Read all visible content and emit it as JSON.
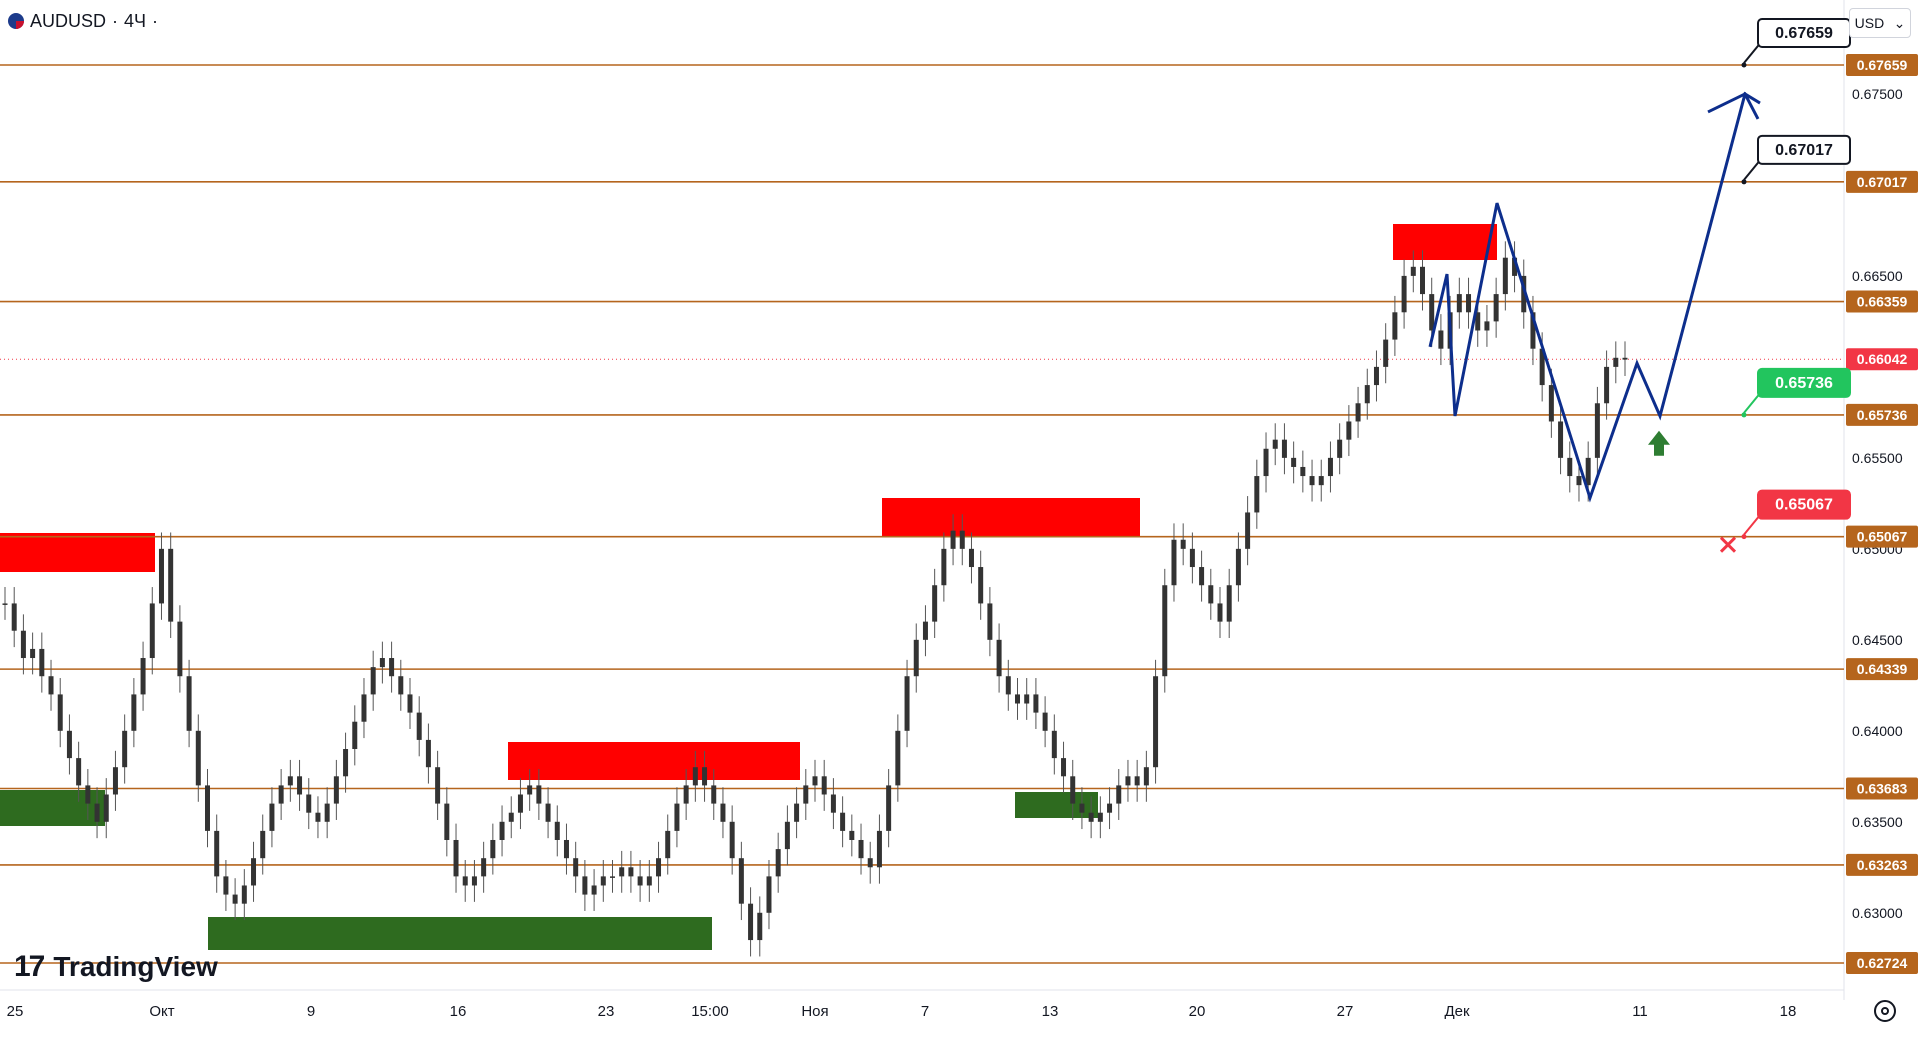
{
  "header": {
    "symbol": "AUDUSD",
    "sep": "·",
    "timeframe": "4Ч",
    "dot": "·"
  },
  "currency_button": {
    "label": "USD",
    "caret": "⌄"
  },
  "logo": {
    "mark": "17",
    "text": "TradingView"
  },
  "colors": {
    "level": "#b5651d",
    "bull": "#2e7d32",
    "bear": "#f23645",
    "zone_red": "#ff0000",
    "zone_green": "#2e6b1f",
    "path": "#0d2e8c",
    "fill_green": "#e8f5e9",
    "fill_red": "#fde4e4"
  },
  "chart_data": {
    "type": "line",
    "instrument": "AUDUSD",
    "timeframe": "4Ч",
    "y_range": [
      0.6272,
      0.6785
    ],
    "price_ticks": [
      "0.67500",
      "0.66500",
      "0.65500",
      "0.65000",
      "0.64500",
      "0.64000",
      "0.63500",
      "0.63000"
    ],
    "time_labels": [
      "25",
      "Окт",
      "9",
      "16",
      "23",
      "15:00",
      "Ноя",
      "7",
      "13",
      "20",
      "27",
      "Дек",
      "11",
      "18"
    ],
    "levels": [
      {
        "price": 0.67659,
        "label": "0.67659"
      },
      {
        "price": 0.67017,
        "label": "0.67017"
      },
      {
        "price": 0.66359,
        "label": "0.66359"
      },
      {
        "price": 0.65736,
        "label": "0.65736"
      },
      {
        "price": 0.65067,
        "label": "0.65067"
      },
      {
        "price": 0.64339,
        "label": "0.64339"
      },
      {
        "price": 0.63683,
        "label": "0.63683"
      },
      {
        "price": 0.63263,
        "label": "0.63263"
      },
      {
        "price": 0.62724,
        "label": "0.62724"
      }
    ],
    "current_price": {
      "price": 0.66042,
      "label": "0.66042"
    },
    "callouts": [
      {
        "price": 0.67659,
        "label": "0.67659",
        "tone": "target"
      },
      {
        "price": 0.67017,
        "label": "0.67017",
        "tone": "target"
      },
      {
        "price": 0.65736,
        "label": "0.65736",
        "tone": "entry"
      },
      {
        "price": 0.65067,
        "label": "0.65067",
        "tone": "stop"
      }
    ],
    "closes": [
      0.647,
      0.6455,
      0.644,
      0.6445,
      0.643,
      0.642,
      0.64,
      0.6385,
      0.637,
      0.636,
      0.635,
      0.6365,
      0.638,
      0.64,
      0.642,
      0.644,
      0.647,
      0.65,
      0.646,
      0.643,
      0.64,
      0.637,
      0.6345,
      0.632,
      0.631,
      0.6305,
      0.6315,
      0.633,
      0.6345,
      0.636,
      0.637,
      0.6375,
      0.6365,
      0.6355,
      0.635,
      0.636,
      0.6375,
      0.639,
      0.6405,
      0.642,
      0.6435,
      0.644,
      0.643,
      0.642,
      0.641,
      0.6395,
      0.638,
      0.636,
      0.634,
      0.632,
      0.6315,
      0.632,
      0.633,
      0.634,
      0.635,
      0.6355,
      0.6365,
      0.637,
      0.636,
      0.635,
      0.634,
      0.633,
      0.632,
      0.631,
      0.6315,
      0.632,
      0.632,
      0.6325,
      0.632,
      0.6315,
      0.632,
      0.633,
      0.6345,
      0.636,
      0.637,
      0.638,
      0.637,
      0.636,
      0.635,
      0.633,
      0.6305,
      0.6285,
      0.63,
      0.632,
      0.6335,
      0.635,
      0.636,
      0.637,
      0.6375,
      0.6365,
      0.6355,
      0.6345,
      0.634,
      0.633,
      0.6325,
      0.6345,
      0.637,
      0.64,
      0.643,
      0.645,
      0.646,
      0.648,
      0.65,
      0.651,
      0.65,
      0.649,
      0.647,
      0.645,
      0.643,
      0.642,
      0.6415,
      0.642,
      0.641,
      0.64,
      0.6385,
      0.6375,
      0.636,
      0.6355,
      0.635,
      0.6355,
      0.636,
      0.637,
      0.6375,
      0.637,
      0.638,
      0.643,
      0.648,
      0.6505,
      0.65,
      0.649,
      0.648,
      0.647,
      0.646,
      0.648,
      0.65,
      0.652,
      0.654,
      0.6555,
      0.656,
      0.655,
      0.6545,
      0.654,
      0.6535,
      0.654,
      0.655,
      0.656,
      0.657,
      0.658,
      0.659,
      0.66,
      0.6615,
      0.663,
      0.665,
      0.6655,
      0.664,
      0.662,
      0.661,
      0.663,
      0.664,
      0.663,
      0.662,
      0.6625,
      0.664,
      0.666,
      0.665,
      0.663,
      0.661,
      0.659,
      0.657,
      0.655,
      0.654,
      0.6535,
      0.655,
      0.658,
      0.66,
      0.6605,
      0.6604
    ]
  },
  "projection": {
    "points": [
      [
        0.6611,
        0.6651,
        0.6573,
        0.669,
        0.6528,
        0.6602,
        0.6573,
        0.675,
        0.6745
      ]
    ],
    "label": ""
  }
}
